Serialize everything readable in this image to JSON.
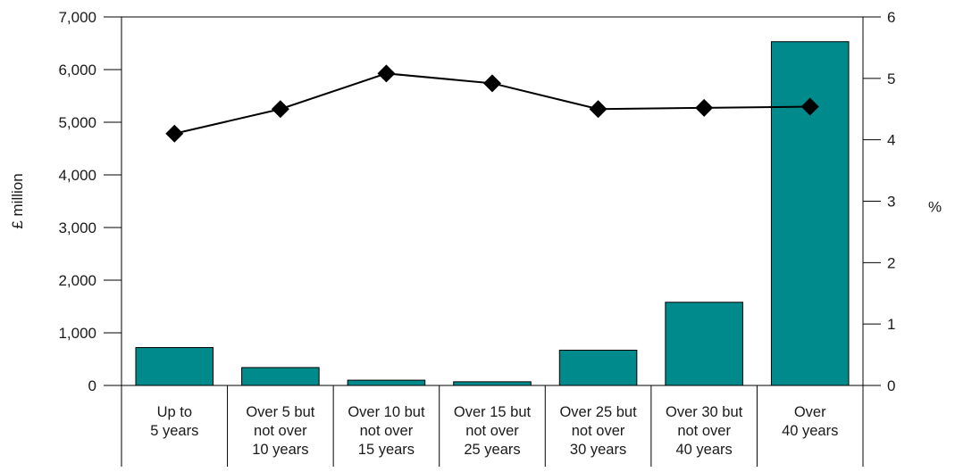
{
  "chart_data": {
    "type": "bar",
    "categories": [
      [
        "Up to",
        "5 years"
      ],
      [
        "Over 5 but",
        "not over",
        "10 years"
      ],
      [
        "Over 10 but",
        "not over",
        "15 years"
      ],
      [
        "Over 15 but",
        "not over",
        "25 years"
      ],
      [
        "Over 25 but",
        "not over",
        "30 years"
      ],
      [
        "Over 30 but",
        "not over",
        "40 years"
      ],
      [
        "Over",
        "40 years"
      ]
    ],
    "series": [
      {
        "type": "bar",
        "axis": "left",
        "values": [
          720,
          340,
          100,
          70,
          670,
          1580,
          6530
        ],
        "color": "#008a8c"
      },
      {
        "type": "line",
        "axis": "right",
        "marker": "diamond",
        "values": [
          4.1,
          4.5,
          5.08,
          4.92,
          4.5,
          4.52,
          4.54
        ],
        "color": "#000000"
      }
    ],
    "ylabel": "£ million",
    "ylabel_right": "%",
    "ylim": [
      0,
      7000
    ],
    "ylim_right": [
      0,
      6
    ],
    "yticks": [
      "0",
      "1,000",
      "2,000",
      "3,000",
      "4,000",
      "5,000",
      "6,000",
      "7,000"
    ],
    "yticks_right": [
      "0",
      "1",
      "2",
      "3",
      "4",
      "5",
      "6"
    ],
    "grid": false,
    "legend": "none"
  }
}
